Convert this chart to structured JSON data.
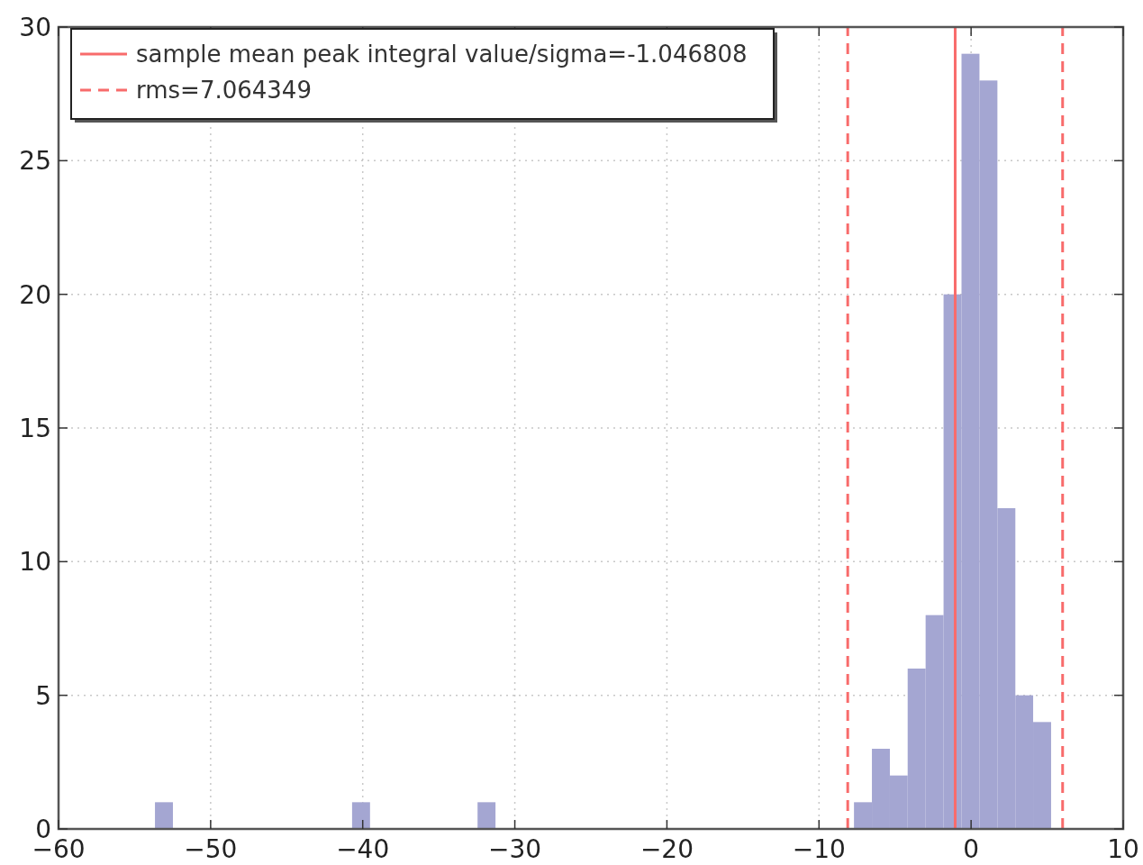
{
  "chart_data": {
    "type": "histogram",
    "bins": [
      -53.66,
      -52.48,
      -51.3,
      -50.13,
      -48.95,
      -47.77,
      -46.59,
      -45.41,
      -44.23,
      -43.05,
      -41.88,
      -40.7,
      -39.52,
      -38.34,
      -37.16,
      -35.98,
      -34.81,
      -33.63,
      -32.45,
      -31.27,
      -30.09,
      -28.91,
      -27.74,
      -26.56,
      -25.38,
      -24.2,
      -23.02,
      -21.84,
      -20.66,
      -19.49,
      -18.31,
      -17.13,
      -15.95,
      -14.77,
      -13.59,
      -12.42,
      -11.24,
      -10.06,
      -8.88,
      -7.7,
      -6.52,
      -5.34,
      -4.17,
      -2.99,
      -1.81,
      -0.63,
      0.55,
      1.73,
      2.91,
      4.08,
      5.26
    ],
    "values": [
      1,
      0,
      0,
      0,
      0,
      0,
      0,
      0,
      0,
      0,
      0,
      1,
      0,
      0,
      0,
      0,
      0,
      0,
      1,
      0,
      0,
      0,
      0,
      0,
      0,
      0,
      0,
      0,
      0,
      0,
      0,
      0,
      0,
      0,
      0,
      0,
      0,
      0,
      0,
      1,
      3,
      2,
      6,
      8,
      20,
      29,
      28,
      12,
      5,
      4
    ],
    "color": "#a4a6d2",
    "xlim": [
      -60,
      10
    ],
    "xticks": [
      {
        "value": -60,
        "label": "−60"
      },
      {
        "value": -50,
        "label": "−50"
      },
      {
        "value": -40,
        "label": "−40"
      },
      {
        "value": -30,
        "label": "−30"
      },
      {
        "value": -20,
        "label": "−20"
      },
      {
        "value": -10,
        "label": "−10"
      },
      0,
      10
    ],
    "ylim": [
      0,
      30
    ],
    "yticks": [
      0,
      5,
      10,
      15,
      20,
      25,
      30
    ],
    "annotations": [
      "sample mean peak integral value/sigma=-1.046808",
      "rms=7.064349"
    ],
    "grid": true,
    "ref_lines": [
      {
        "axis": "x",
        "value": -1.046808,
        "label": null,
        "color": "#f86b6b",
        "line_style": "solid"
      },
      {
        "axis": "x",
        "value": -8.111157,
        "label": null,
        "color": "#f86b6b",
        "line_style": "dashed"
      },
      {
        "axis": "x",
        "value": 6.017541,
        "label": null,
        "color": "#f86b6b",
        "line_style": "dashed"
      }
    ]
  }
}
